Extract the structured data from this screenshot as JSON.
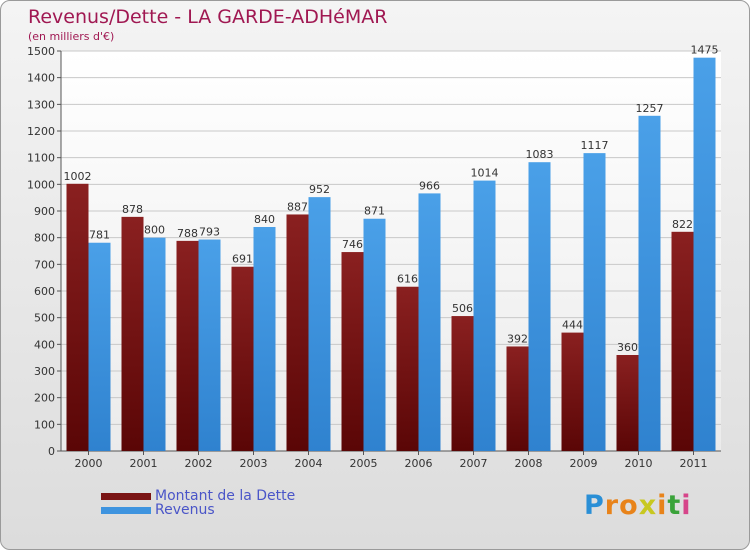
{
  "title": "Revenus/Dette - LA GARDE-ADHéMAR",
  "subtitle": "(en milliers d'€)",
  "colors": {
    "debt": "#7a1414",
    "revenue": "#3f94df",
    "title": "#a01852",
    "legend_text": "#4a55c8"
  },
  "chart_data": {
    "type": "bar",
    "categories": [
      "2000",
      "2001",
      "2002",
      "2003",
      "2004",
      "2005",
      "2006",
      "2007",
      "2008",
      "2009",
      "2010",
      "2011"
    ],
    "series": [
      {
        "name": "Montant de la Dette",
        "values": [
          1002,
          878,
          788,
          691,
          887,
          746,
          616,
          506,
          392,
          444,
          360,
          822
        ]
      },
      {
        "name": "Revenus",
        "values": [
          781,
          800,
          793,
          840,
          952,
          871,
          966,
          1014,
          1083,
          1117,
          1257,
          1475
        ]
      }
    ],
    "ylim": [
      0,
      1500
    ],
    "yticks": [
      0,
      100,
      200,
      300,
      400,
      500,
      600,
      700,
      800,
      900,
      1000,
      1100,
      1200,
      1300,
      1400,
      1500
    ],
    "grid": true,
    "legend_position": "bottom-left"
  },
  "legend": [
    {
      "label": "Montant de la Dette"
    },
    {
      "label": "Revenus"
    }
  ],
  "logo": {
    "letters": [
      "P",
      "r",
      "o",
      "x",
      "i",
      "t",
      "i"
    ],
    "colors": [
      "#2a8fd6",
      "#e8831a",
      "#e8831a",
      "#c8c820",
      "#e8831a",
      "#3aa33a",
      "#d6458a"
    ]
  }
}
